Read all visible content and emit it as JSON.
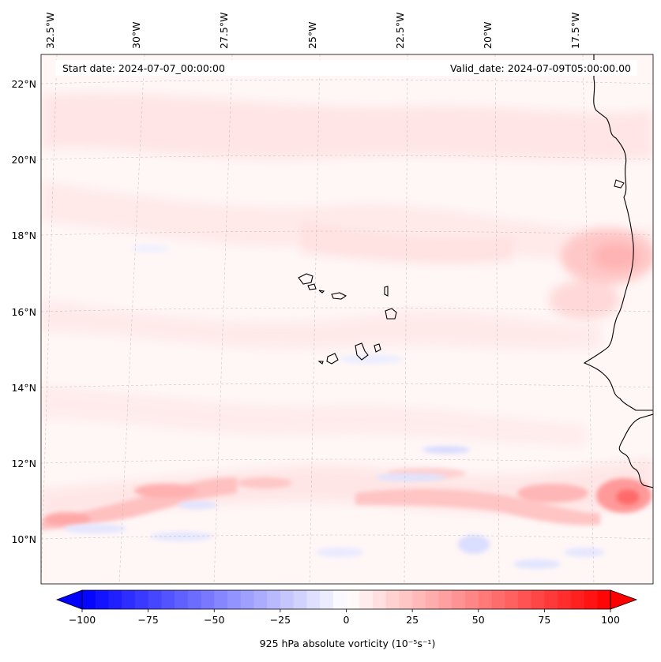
{
  "map": {
    "start_label": "Start date: 2024-07-07_00:00:00",
    "valid_label": "Valid_date: 2024-07-09T05:00:00.00",
    "longitude_labels": [
      "32.5°W",
      "30°W",
      "27.5°W",
      "25°W",
      "22.5°W",
      "20°W",
      "17.5°W"
    ],
    "latitude_labels": [
      "22°N",
      "20°N",
      "18°N",
      "16°N",
      "14°N",
      "12°N",
      "10°N"
    ],
    "field": "925 hPa absolute vorticity",
    "features": [
      "West African coastline",
      "Cape Verde islands"
    ]
  },
  "colorbar": {
    "label": "925 hPa absolute vorticity (10⁻⁵s⁻¹)",
    "ticks": [
      "−100",
      "−75",
      "−50",
      "−25",
      "0",
      "25",
      "50",
      "75",
      "100"
    ],
    "vmin": -100,
    "vmax": 100,
    "colormap": "bwr",
    "extend": "both",
    "low_color": "#0000ff",
    "mid_color": "#ffffff",
    "high_color": "#ff0000"
  }
}
